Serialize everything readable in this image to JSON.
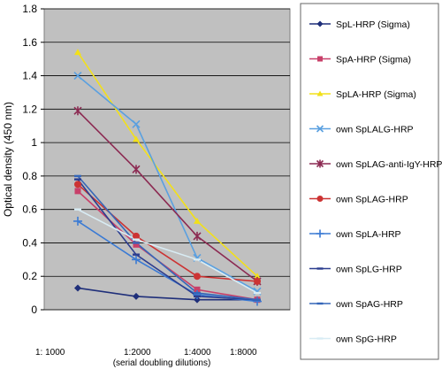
{
  "chart_data": {
    "type": "line",
    "ylabel": "Optical density (450 nm)",
    "xlabel": "(serial doubling dilutions)",
    "x_tick_labels": [
      "1: 1000",
      "1:2000",
      "1:4000",
      "1:8000"
    ],
    "ylim": [
      0,
      1.8
    ],
    "y_ticks": [
      0,
      0.2,
      0.4,
      0.6,
      0.8,
      1,
      1.2,
      1.4,
      1.6,
      1.8
    ],
    "plot_background": "#c0c0c0",
    "legend_position": "right",
    "series": [
      {
        "name": "SpL-HRP (Sigma)",
        "color": "#1f2f7a",
        "marker": "diamond",
        "values": [
          0.13,
          0.08,
          0.06,
          0.06
        ]
      },
      {
        "name": "SpA-HRP (Sigma)",
        "color": "#c8406a",
        "marker": "square",
        "values": [
          0.71,
          0.39,
          0.12,
          0.06
        ]
      },
      {
        "name": "SpLA-HRP (Sigma)",
        "color": "#f2e01a",
        "marker": "triangle",
        "values": [
          1.54,
          1.02,
          0.53,
          0.2
        ]
      },
      {
        "name": "own SpLALG-HRP",
        "color": "#5aa0e0",
        "marker": "x",
        "values": [
          1.4,
          1.11,
          0.31,
          0.11
        ]
      },
      {
        "name": "own SpLAG-anti-IgY-HRP",
        "color": "#8c2a52",
        "marker": "star",
        "values": [
          1.19,
          0.84,
          0.44,
          0.17
        ]
      },
      {
        "name": "own SpLAG-HRP",
        "color": "#cc3333",
        "marker": "circle",
        "values": [
          0.75,
          0.44,
          0.2,
          0.17
        ]
      },
      {
        "name": "own SpLA-HRP",
        "color": "#3a7ad4",
        "marker": "plus",
        "values": [
          0.53,
          0.3,
          0.09,
          0.05
        ]
      },
      {
        "name": "own SpLG-HRP",
        "color": "#2c3d8f",
        "marker": "dash",
        "values": [
          0.78,
          0.33,
          0.08,
          0.06
        ]
      },
      {
        "name": "own SpAG-HRP",
        "color": "#3566b8",
        "marker": "dash",
        "values": [
          0.8,
          0.4,
          0.1,
          0.06
        ]
      },
      {
        "name": "own SpG-HRP",
        "color": "#d8ecf4",
        "marker": "dash",
        "values": [
          0.6,
          0.42,
          0.3,
          0.1
        ]
      }
    ]
  }
}
